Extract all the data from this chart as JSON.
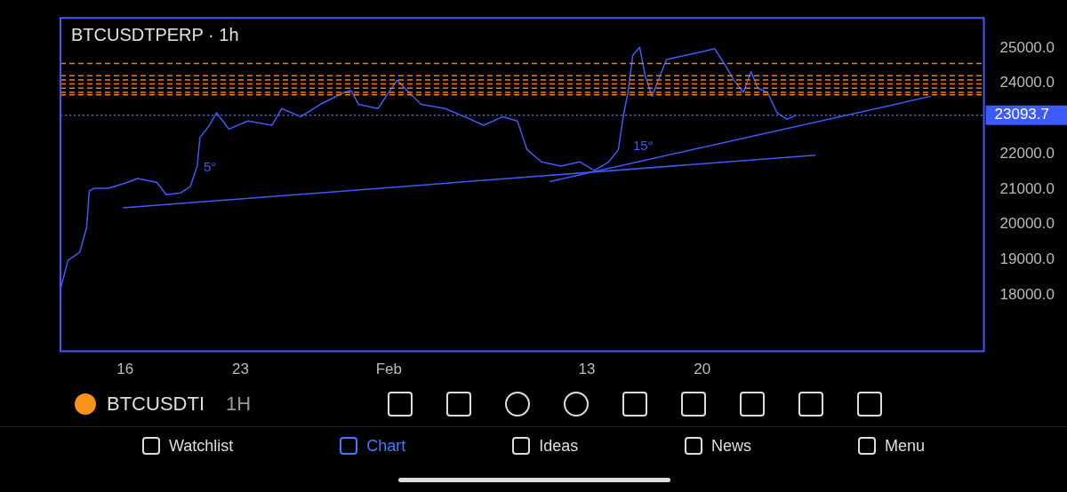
{
  "chart_data": {
    "type": "line",
    "title": "BTCUSDTPERP · 1h",
    "series": [
      {
        "color": "#3d5afe",
        "x": [
          "--01-12T02:00",
          "--01-12T13:00",
          "--01-13T06:00",
          "--01-13T16:00",
          "--01-13T20:00",
          "--01-14T03:00",
          "--01-15T00:00",
          "--01-16T04:00",
          "--01-16T18:00",
          "--01-17T22:00",
          "--01-18T12:00",
          "--01-19T09:00",
          "--01-19T23:00",
          "--01-20T09:00",
          "--01-20T13:00",
          "--01-21T03:00",
          "--01-21T13:00",
          "--01-22T07:00",
          "--01-23T11:00",
          "--01-24T22:00",
          "--01-25T12:00",
          "--01-26T16:00",
          "--01-27T20:00",
          "--01-29T07:00",
          "--01-29T17:00",
          "--01-30T04:00",
          "--01-31T08:00",
          "--02-01T12:00",
          "--02-02T05:00",
          "--02-02T23:00",
          "--02-04T10:00",
          "--02-05T14:00",
          "--02-06T18:00",
          "--02-07T22:00",
          "--02-08T19:00",
          "--02-09T09:00",
          "--02-10T06:00",
          "--02-11T10:00",
          "--02-12T14:00",
          "--02-13T11:00",
          "--02-14T08:00",
          "--02-14T22:00",
          "--02-15T05:00",
          "--02-15T12:00",
          "--02-15T19:00",
          "--02-16T05:00",
          "--02-16T13:00",
          "--02-16T23:00",
          "--02-17T06:00",
          "--02-17T20:00",
          "--02-19T00:00",
          "--02-20T04:00",
          "--02-20T18:00",
          "--02-21T08:00",
          "--02-21T22:00",
          "--02-22T12:00",
          "--02-22T23:00",
          "--02-23T09:00",
          "--02-23T23:00",
          "--02-24T13:00",
          "--02-25T03:00",
          "--02-25T17:00"
        ],
        "values": [
          18160,
          18980,
          19210,
          19900,
          20950,
          21020,
          21020,
          21190,
          21300,
          21190,
          20840,
          20890,
          21070,
          21650,
          22460,
          22810,
          23160,
          22700,
          22930,
          22810,
          23280,
          23050,
          23400,
          23740,
          23790,
          23400,
          23280,
          24090,
          23740,
          23400,
          23280,
          23050,
          22810,
          23050,
          22930,
          22120,
          21770,
          21650,
          21770,
          21530,
          21770,
          22120,
          23050,
          23740,
          24790,
          25020,
          24210,
          23630,
          23980,
          24670,
          24790,
          24910,
          24980,
          24560,
          24090,
          23740,
          24330,
          23860,
          23740,
          23160,
          22980,
          23090
        ]
      },
      {
        "color": "#3d5afe",
        "x": [
          "--01-15T21:00",
          "--02-26T21:00"
        ],
        "values": [
          20470,
          21960
        ]
      },
      {
        "color": "#3d5afe",
        "x": [
          "--02-10T18:00",
          "--03-05T21:00"
        ],
        "values": [
          21210,
          23630
        ]
      }
    ],
    "xlim": [
      "--01-12T02:00",
      "--03-09T02:00"
    ],
    "xticks": [
      {
        "value": "--01-16",
        "label": "16"
      },
      {
        "value": "--01-23",
        "label": "23"
      },
      {
        "value": "--02-01",
        "label": "Feb"
      },
      {
        "value": "--02-13",
        "label": "13"
      },
      {
        "value": "--02-20",
        "label": "20"
      }
    ],
    "ylim": [
      16400,
      25850
    ],
    "yticks": [
      {
        "value": 18000,
        "label": "18000.0"
      },
      {
        "value": 19000,
        "label": "19000.0"
      },
      {
        "value": 20000,
        "label": "20000.0"
      },
      {
        "value": 21000,
        "label": "21000.0"
      },
      {
        "value": 22000,
        "label": "22000.0"
      },
      {
        "value": 24000,
        "label": "24000.0"
      },
      {
        "value": 25000,
        "label": "25000.0"
      }
    ],
    "ref_lines": [
      {
        "axis": "y",
        "value": 24560,
        "color": "#f57c00",
        "line_style": "dashed"
      },
      {
        "axis": "y",
        "value": 24210,
        "color": "#f57c00",
        "line_style": "dashed"
      },
      {
        "axis": "y",
        "value": 24090,
        "color": "#f57c00",
        "line_style": "dashed"
      },
      {
        "axis": "y",
        "value": 23980,
        "color": "#f57c00",
        "line_style": "dashed"
      },
      {
        "axis": "y",
        "value": 23860,
        "color": "#f57c00",
        "line_style": "dashed"
      },
      {
        "axis": "y",
        "value": 23740,
        "color": "#f57c00",
        "line_style": "dashed"
      },
      {
        "axis": "y",
        "value": 23670,
        "color": "#f57c00",
        "line_style": "dashed"
      },
      {
        "axis": "y",
        "value": 23093.7,
        "label": "23093.7",
        "color": "#3d5afe",
        "line_style": "dotted"
      }
    ],
    "annotations": [
      "5°",
      "15°",
      "BTCUSDTI",
      "1H",
      "Watchlist",
      "Chart",
      "Ideas",
      "News",
      "Menu"
    ],
    "grid": false,
    "legend": false,
    "marker": "none",
    "line_style": "solid"
  }
}
